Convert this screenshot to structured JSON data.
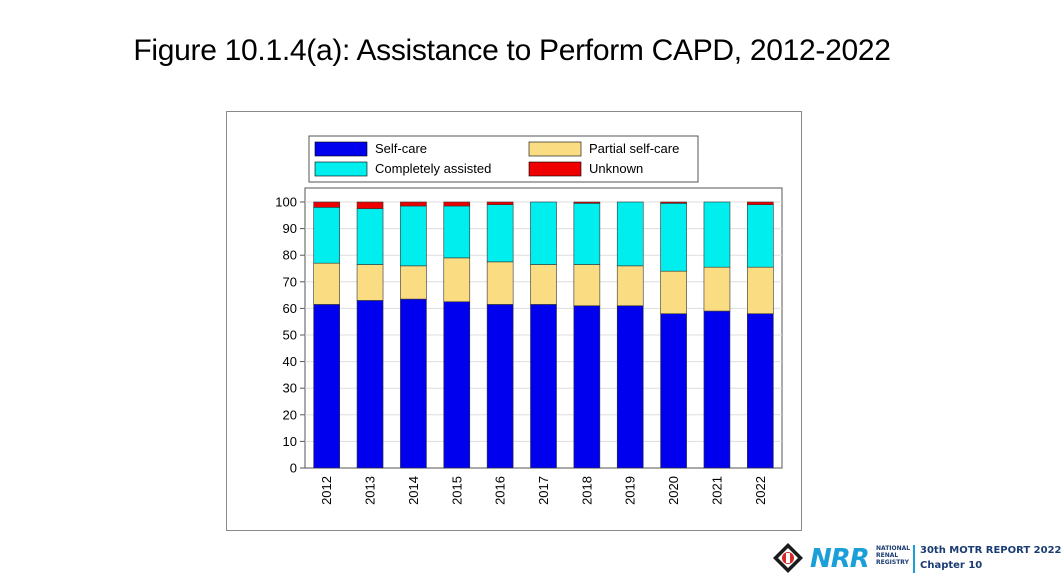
{
  "slide": {
    "title": "Figure 10.1.4(a): Assistance to Perform CAPD, 2012-2022"
  },
  "footer": {
    "brand": "NRR",
    "registry_lines": [
      "NATIONAL",
      "RENAL",
      "REGISTRY"
    ],
    "report": "30th MOTR REPORT 2022",
    "chapter": "Chapter 10"
  },
  "colors": {
    "self_care": "#0000ee",
    "partial_self_care": "#fadc82",
    "completely_assisted": "#00eeee",
    "unknown": "#ee0000"
  },
  "chart_data": {
    "type": "bar",
    "stacked": true,
    "title": "",
    "xlabel": "",
    "ylabel": "",
    "ylim": [
      0,
      100
    ],
    "yticks": [
      0,
      10,
      20,
      30,
      40,
      50,
      60,
      70,
      80,
      90,
      100
    ],
    "grid": true,
    "legend_position": "top",
    "categories": [
      "2012",
      "2013",
      "2014",
      "2015",
      "2016",
      "2017",
      "2018",
      "2019",
      "2020",
      "2021",
      "2022"
    ],
    "series": [
      {
        "name": "Self-care",
        "color": "#0000ee",
        "values": [
          61.5,
          63,
          63.5,
          62.5,
          61.5,
          61.5,
          61,
          61,
          58,
          59,
          58
        ]
      },
      {
        "name": "Partial self-care",
        "color": "#fadc82",
        "values": [
          15.5,
          13.5,
          12.5,
          16.5,
          16,
          15,
          15.5,
          15,
          16,
          16.5,
          17.5
        ]
      },
      {
        "name": "Completely assisted",
        "color": "#00eeee",
        "values": [
          21,
          21,
          22.5,
          19.5,
          21.5,
          23.5,
          23,
          24,
          25.5,
          24.5,
          23.5
        ]
      },
      {
        "name": "Unknown",
        "color": "#ee0000",
        "values": [
          2,
          2.5,
          1.5,
          1.5,
          1,
          0,
          0.5,
          0,
          0.5,
          0,
          1
        ]
      }
    ],
    "legend_order": [
      "Self-care",
      "Partial self-care",
      "Completely assisted",
      "Unknown"
    ]
  }
}
